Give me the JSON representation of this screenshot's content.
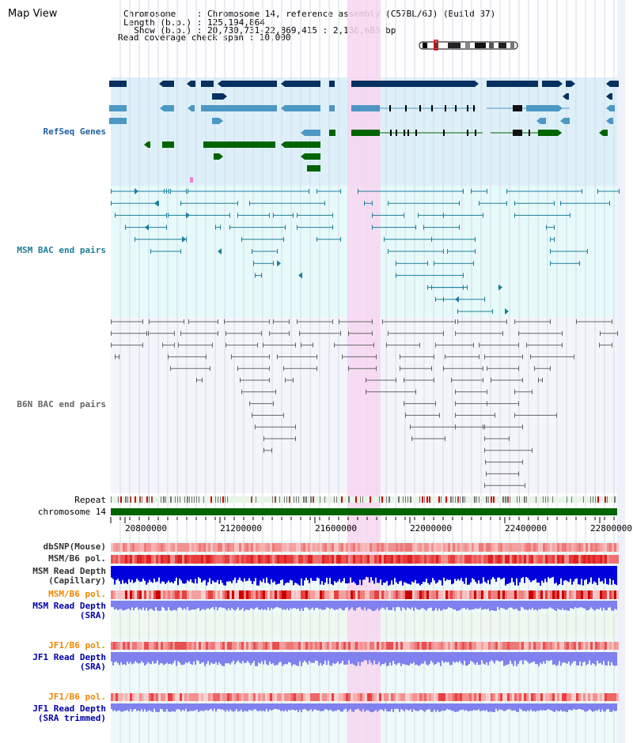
{
  "header": {
    "title": "Map View",
    "info_lines": [
      "Chromosome    : Chromosome 14, reference assembly (C57BL/6J) (Build 37)",
      "Length (b.p.) : 125,194,864",
      "  Show (b.p.) : 20,730,731-22,869,415 : 2,138,685 bp",
      "Read coverage check span : 10,000"
    ]
  },
  "tracks": {
    "refseq_label": "RefSeq Genes",
    "msm_bac_label": "MSM BAC end pairs",
    "b6n_bac_label": "B6N BAC end pairs",
    "repeat_label": "Repeat",
    "chromosome_label": "chromosome 14",
    "dbsnp_label": "dbSNP(Mouse)",
    "msm_b6_pol_label": "MSM/B6 pol.",
    "msm_read_depth_cap_label": "MSM Read Depth\n(Capillary)",
    "msm_b6_pol2_label": "MSM/B6 pol.",
    "msm_read_depth_sra_label": "MSM Read Depth\n(SRA)",
    "jf1_b6_pol_label": "JF1/B6 pol.",
    "jf1_read_depth_sra_label": "JF1 Read Depth\n(SRA)",
    "jf1_b6_pol2_label": "JF1/B6 pol.",
    "jf1_read_depth_trim_label": "JF1 Read Depth\n(SRA trimmed)"
  },
  "axis": {
    "ticks": [
      "20800000",
      "21200000",
      "21600000",
      "22000000",
      "22400000",
      "22800000"
    ]
  },
  "colors": {
    "gene_dark": "#07305f",
    "gene_mid": "#4d97c4",
    "gene_green": "#006400",
    "msm_bac": "#1e7e9a",
    "b6n_bac": "#666666",
    "highlight": "#f7d6f0",
    "pol_red": "#ee3333",
    "pol_orange": "#ee8800",
    "depth_blue": "#0000dd",
    "depth_light": "#8080ee",
    "refseq_bg": "#ddf0f8",
    "msm_bg": "#e6fafa",
    "b6n_bg": "#f4f5fa"
  }
}
